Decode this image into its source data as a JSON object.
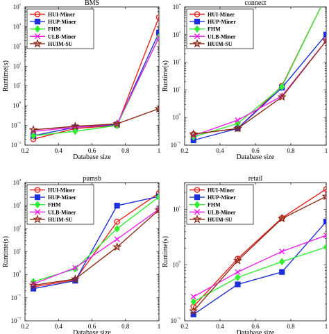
{
  "chart_data": [
    {
      "type": "line",
      "title": "BMS",
      "xlabel": "Database size",
      "ylabel": "Runtime(s)",
      "yscale": "log",
      "xlim": [
        0.2,
        1
      ],
      "ylim": [
        0.01,
        100000
      ],
      "xticks": [
        "0.2",
        "0.4",
        "0.6",
        "0.8",
        "1"
      ],
      "yticks": [
        "10⁻²",
        "10⁻¹",
        "10⁰",
        "10¹",
        "10²",
        "10³",
        "10⁴",
        "10⁵"
      ],
      "grid": false,
      "legend_position": "top-left",
      "x": [
        0.25,
        0.5,
        0.75,
        1
      ],
      "series": [
        {
          "name": "HUI-Miner",
          "values": [
            0.02,
            0.07,
            0.1,
            30000
          ]
        },
        {
          "name": "HUP-Miner",
          "values": [
            0.03,
            0.08,
            0.11,
            5000
          ]
        },
        {
          "name": "FHM",
          "values": [
            0.03,
            0.05,
            0.1,
            3000
          ]
        },
        {
          "name": "ULB-Miner",
          "values": [
            0.05,
            0.08,
            0.12,
            2800
          ]
        },
        {
          "name": "HUIM-SU",
          "values": [
            0.06,
            0.09,
            0.12,
            0.7
          ]
        }
      ]
    },
    {
      "type": "line",
      "title": "connect",
      "xlabel": "Database size",
      "ylabel": "Runtime(s)",
      "yscale": "log",
      "xlim": [
        0.2,
        1
      ],
      "ylim": [
        0.1,
        10000
      ],
      "xticks": [
        "0.2",
        "0.4",
        "0.6",
        "0.8",
        "1"
      ],
      "yticks": [
        "10⁻¹",
        "10⁰",
        "10¹",
        "10²",
        "10³",
        "10⁴"
      ],
      "grid": false,
      "legend_position": "top-left",
      "x": [
        0.25,
        0.5,
        0.75,
        1
      ],
      "series": [
        {
          "name": "HUI-Miner",
          "values": [
            0.25,
            0.4,
            14,
            25000
          ]
        },
        {
          "name": "HUP-Miner",
          "values": [
            0.15,
            0.4,
            12,
            1000
          ]
        },
        {
          "name": "FHM",
          "values": [
            0.2,
            0.6,
            13,
            25000
          ]
        },
        {
          "name": "ULB-Miner",
          "values": [
            0.22,
            0.8,
            6,
            600
          ]
        },
        {
          "name": "HUIM-SU",
          "values": [
            0.25,
            0.4,
            5.5,
            600
          ]
        }
      ]
    },
    {
      "type": "line",
      "title": "pumsb",
      "xlabel": "Database size",
      "ylabel": "Runtime(s)",
      "yscale": "log",
      "xlim": [
        0.2,
        1
      ],
      "ylim": [
        0.01,
        10000
      ],
      "xticks": [
        "0.2",
        "0.4",
        "0.6",
        "0.8",
        "1"
      ],
      "yticks": [
        "10⁻²",
        "10⁻¹",
        "10⁰",
        "10¹",
        "10²",
        "10³",
        "10⁴"
      ],
      "grid": false,
      "legend_position": "top-left",
      "x": [
        0.25,
        0.5,
        0.75,
        1
      ],
      "series": [
        {
          "name": "HUI-Miner",
          "values": [
            0.3,
            0.6,
            200,
            3500
          ]
        },
        {
          "name": "HUP-Miner",
          "values": [
            0.25,
            0.55,
            1000,
            2500
          ]
        },
        {
          "name": "FHM",
          "values": [
            0.5,
            1.8,
            100,
            2400
          ]
        },
        {
          "name": "ULB-Miner",
          "values": [
            0.4,
            2.0,
            35,
            700
          ]
        },
        {
          "name": "HUIM-SU",
          "values": [
            0.35,
            0.65,
            16,
            650
          ]
        }
      ]
    },
    {
      "type": "line",
      "title": "retail",
      "xlabel": "Database size",
      "ylabel": "Runtime(s)",
      "yscale": "log",
      "xlim": [
        0.2,
        1
      ],
      "ylim": [
        0.1,
        30
      ],
      "xticks": [
        "0.2",
        "0.4",
        "0.6",
        "0.8",
        "1"
      ],
      "yticks": [
        "10⁻¹",
        "10⁰",
        "10¹"
      ],
      "grid": false,
      "legend_position": "top-left",
      "x": [
        0.25,
        0.5,
        0.75,
        1
      ],
      "series": [
        {
          "name": "HUI-Miner",
          "values": [
            0.18,
            1.3,
            7,
            23
          ]
        },
        {
          "name": "HUP-Miner",
          "values": [
            0.13,
            0.45,
            0.75,
            6
          ]
        },
        {
          "name": "FHM",
          "values": [
            0.22,
            0.6,
            1.15,
            2.1
          ]
        },
        {
          "name": "ULB-Miner",
          "values": [
            0.27,
            0.75,
            1.75,
            3.4
          ]
        },
        {
          "name": "HUIM-SU",
          "values": [
            0.15,
            1.2,
            6.8,
            17
          ]
        }
      ]
    }
  ],
  "series_styles": [
    {
      "color": "#e8221e",
      "marker": "circle"
    },
    {
      "color": "#1f2fd8",
      "marker": "square"
    },
    {
      "color": "#33ee33",
      "marker": "diamond"
    },
    {
      "color": "#ee22ee",
      "marker": "x"
    },
    {
      "color": "#8b2a17",
      "marker": "star"
    }
  ]
}
